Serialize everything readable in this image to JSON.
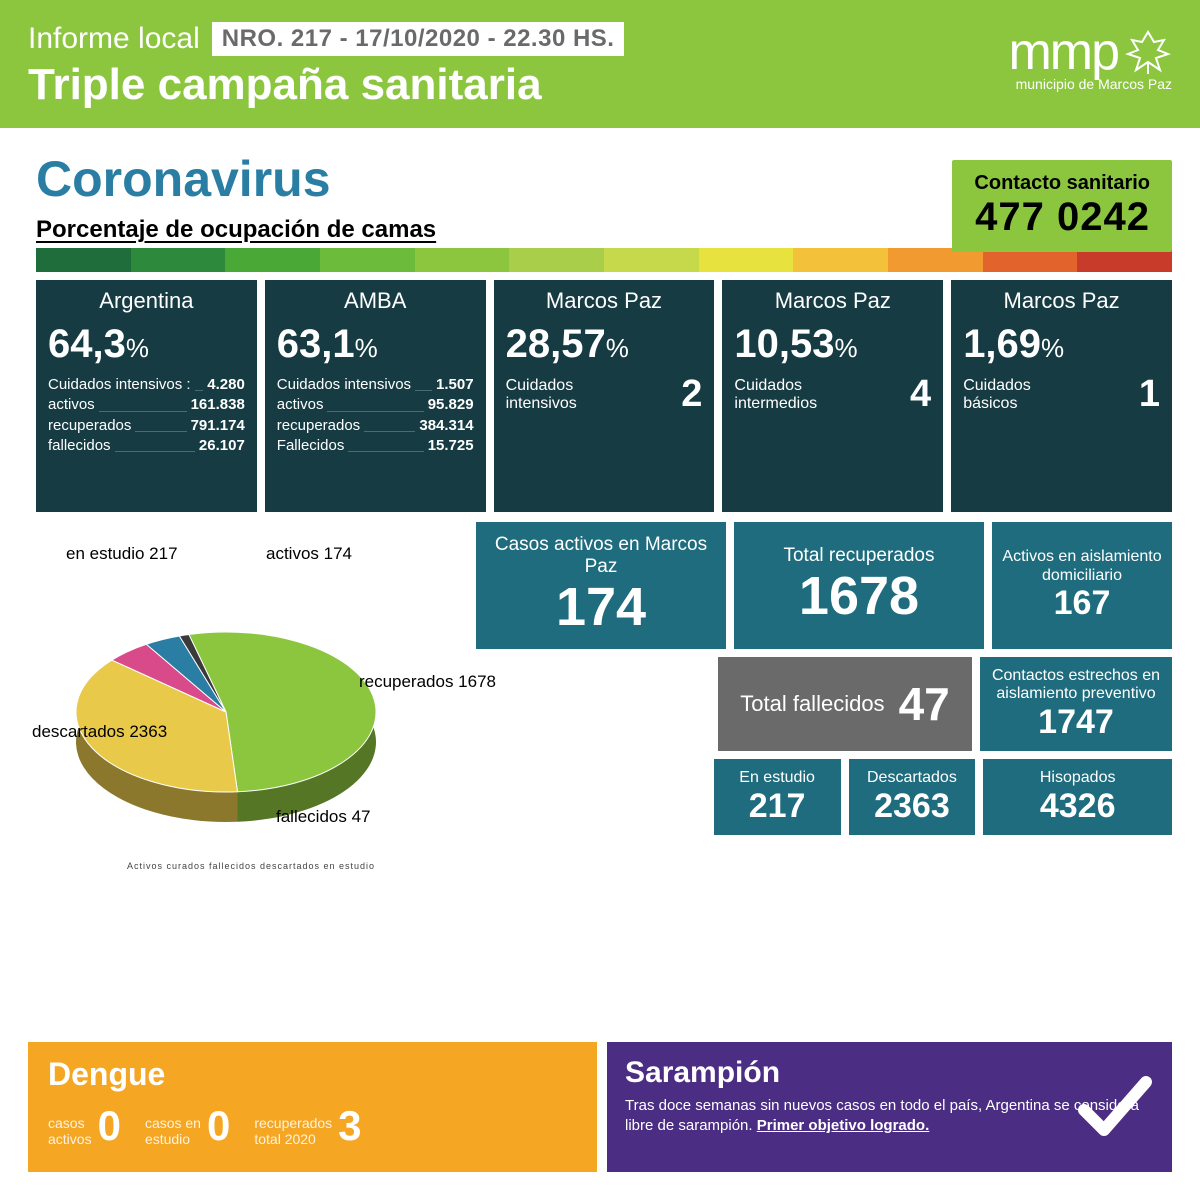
{
  "header": {
    "informe": "Informe local",
    "nro_badge": "NRO. 217 - 17/10/2020 - 22.30 HS.",
    "triple": "Triple campaña sanitaria",
    "logo_text": "mmp",
    "logo_sub": "municipio de Marcos Paz",
    "bg_color": "#8cc63f"
  },
  "contact": {
    "label": "Contacto sanitario",
    "number": "477 0242"
  },
  "coronavirus": {
    "title": "Coronavirus",
    "subtitle": "Porcentaje de ocupación de camas",
    "title_color": "#2a7ea3"
  },
  "gradient_colors": [
    "#1f6d3a",
    "#2d8a3d",
    "#4aa836",
    "#6dbb3a",
    "#8cc63f",
    "#a8ce4a",
    "#c6d94a",
    "#e8e23e",
    "#f4c23a",
    "#f19a2f",
    "#e2632b",
    "#c83a2a"
  ],
  "occupancy": [
    {
      "region": "Argentina",
      "pct": "64,3",
      "tall": true,
      "lines": [
        {
          "k": "Cuidados intensivos :",
          "v": "4.280"
        },
        {
          "k": "activos",
          "v": "161.838"
        },
        {
          "k": "recuperados",
          "v": "791.174"
        },
        {
          "k": "fallecidos",
          "v": "26.107"
        }
      ]
    },
    {
      "region": "AMBA",
      "pct": "63,1",
      "tall": true,
      "lines": [
        {
          "k": "Cuidados intensivos",
          "v": "1.507"
        },
        {
          "k": "activos",
          "v": "95.829"
        },
        {
          "k": "recuperados",
          "v": "384.314"
        },
        {
          "k": "Fallecidos",
          "v": "15.725"
        }
      ]
    },
    {
      "region": "Marcos Paz",
      "pct": "28,57",
      "int_label": "Cuidados intensivos",
      "int_value": "2"
    },
    {
      "region": "Marcos Paz",
      "pct": "10,53",
      "int_label": "Cuidados intermedios",
      "int_value": "4"
    },
    {
      "region": "Marcos Paz",
      "pct": "1,69",
      "int_label": "Cuidados básicos",
      "int_value": "1"
    }
  ],
  "pie": {
    "type": "pie",
    "slices": [
      {
        "label": "descartados",
        "value": 2363,
        "color": "#8cc63f"
      },
      {
        "label": "recuperados",
        "value": 1678,
        "color": "#e8c94a"
      },
      {
        "label": "en estudio",
        "value": 217,
        "color": "#d94a8a"
      },
      {
        "label": "activos",
        "value": 174,
        "color": "#2a7ea3"
      },
      {
        "label": "fallecidos",
        "value": 47,
        "color": "#3a3a3a"
      }
    ],
    "labels": {
      "en_estudio": "en estudio 217",
      "activos": "activos 174",
      "recuperados": "recuperados 1678",
      "descartados": "descartados 2363",
      "fallecidos": "fallecidos 47"
    },
    "legend_tiny": "Activos    curados    fallecidos    descartados    en estudio"
  },
  "stats": {
    "casos_activos": {
      "label": "Casos activos en Marcos Paz",
      "value": "174"
    },
    "total_recuperados": {
      "label": "Total recuperados",
      "value": "1678"
    },
    "aislamiento_dom": {
      "label": "Activos en aislamiento domiciliario",
      "value": "167"
    },
    "total_fallecidos": {
      "label": "Total fallecidos",
      "value": "47"
    },
    "contactos_estrechos": {
      "label": "Contactos estrechos en aislamiento preventivo",
      "value": "1747"
    },
    "en_estudio": {
      "label": "En estudio",
      "value": "217"
    },
    "descartados": {
      "label": "Descartados",
      "value": "2363"
    },
    "hisopados": {
      "label": "Hisopados",
      "value": "4326"
    }
  },
  "dengue": {
    "title": "Dengue",
    "bg_color": "#f5a623",
    "items": [
      {
        "label": "casos<br>activos",
        "value": "0"
      },
      {
        "label": "casos en<br>estudio",
        "value": "0"
      },
      {
        "label": "recuperados<br>total 2020",
        "value": "3"
      }
    ]
  },
  "sarampion": {
    "title": "Sarampión",
    "text": "Tras doce semanas sin nuevos casos en todo el país, Argentina se considera libre de sarampión. ",
    "bold": "Primer objetivo logrado.",
    "bg_color": "#4b2e83"
  },
  "card_colors": {
    "dark": "#163b42",
    "teal": "#1e6c7d",
    "gray": "#6a6a6a"
  }
}
